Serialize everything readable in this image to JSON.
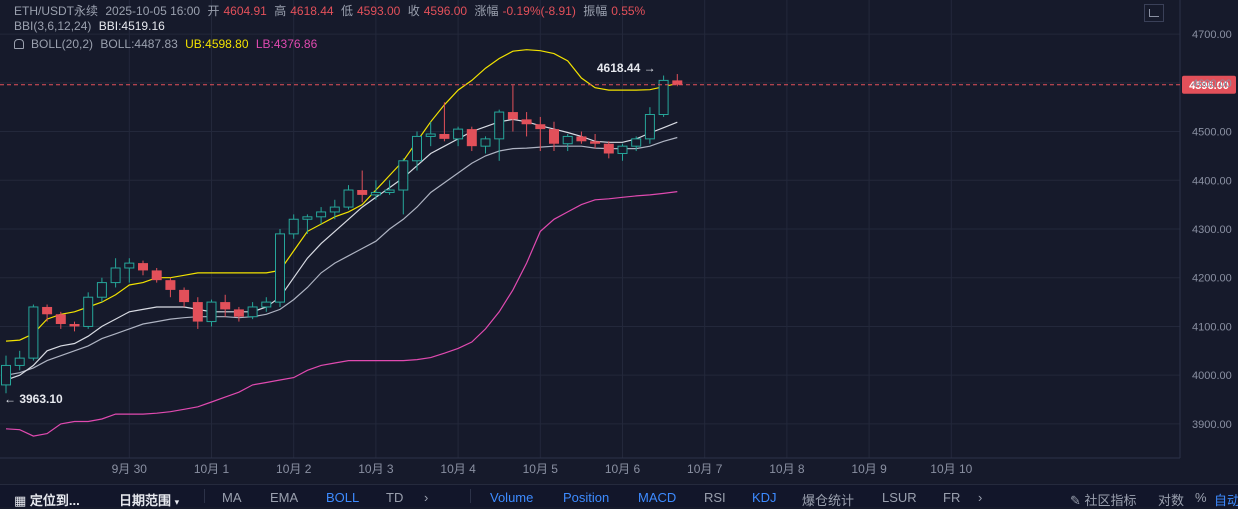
{
  "header": {
    "symbol": "ETH/USDT永续",
    "datetime": "2025-10-05 16:00",
    "open_label": "开",
    "open": "4604.91",
    "high_label": "高",
    "high": "4618.44",
    "low_label": "低",
    "low": "4593.00",
    "close_label": "收",
    "close": "4596.00",
    "change_label": "涨幅",
    "change": "-0.19%(-8.91)",
    "amp_label": "振幅",
    "amp": "0.55%",
    "bbi_title": "BBI(3,6,12,24)",
    "bbi_value": "BBI:4519.16",
    "boll_title": "BOLL(20,2)",
    "boll_value": "BOLL:4487.83",
    "ub_value": "UB:4598.80",
    "lb_value": "LB:4376.86"
  },
  "colors": {
    "up": "#26a69a",
    "down": "#e2505a",
    "ub": "#f2e200",
    "mid": "#aeb3c2",
    "lb": "#e04ab0",
    "bbi": "#d8dbe3",
    "price_tag": "#e2505a"
  },
  "chart_data": {
    "type": "candlestick",
    "symbol": "ETH/USDT",
    "x_ticks": [
      "9月 30",
      "10月 1",
      "10月 2",
      "10月 3",
      "10月 4",
      "10月 5",
      "10月 6",
      "10月 7",
      "10月 8",
      "10月 9",
      "10月 10"
    ],
    "y_ticks": [
      "4700.00",
      "4600.00",
      "4500.00",
      "4400.00",
      "4300.00",
      "4200.00",
      "4100.00",
      "4000.00",
      "3900.00"
    ],
    "ylim": [
      3830,
      4770
    ],
    "x_step_days": 0.16667,
    "first_candle": "2025-09-29 12:00",
    "grid": true,
    "candles": [
      {
        "o": 3980,
        "h": 4040,
        "l": 3963,
        "c": 4020
      },
      {
        "o": 4020,
        "h": 4050,
        "l": 4010,
        "c": 4035
      },
      {
        "o": 4035,
        "h": 4145,
        "l": 4030,
        "c": 4140
      },
      {
        "o": 4140,
        "h": 4145,
        "l": 4110,
        "c": 4125
      },
      {
        "o": 4125,
        "h": 4130,
        "l": 4095,
        "c": 4105
      },
      {
        "o": 4105,
        "h": 4110,
        "l": 4090,
        "c": 4100
      },
      {
        "o": 4100,
        "h": 4170,
        "l": 4095,
        "c": 4160
      },
      {
        "o": 4160,
        "h": 4200,
        "l": 4150,
        "c": 4190
      },
      {
        "o": 4190,
        "h": 4240,
        "l": 4180,
        "c": 4220
      },
      {
        "o": 4220,
        "h": 4240,
        "l": 4190,
        "c": 4230
      },
      {
        "o": 4230,
        "h": 4235,
        "l": 4205,
        "c": 4215
      },
      {
        "o": 4215,
        "h": 4220,
        "l": 4190,
        "c": 4195
      },
      {
        "o": 4195,
        "h": 4200,
        "l": 4160,
        "c": 4175
      },
      {
        "o": 4175,
        "h": 4180,
        "l": 4140,
        "c": 4150
      },
      {
        "o": 4150,
        "h": 4160,
        "l": 4095,
        "c": 4110
      },
      {
        "o": 4110,
        "h": 4155,
        "l": 4100,
        "c": 4150
      },
      {
        "o": 4150,
        "h": 4165,
        "l": 4120,
        "c": 4135
      },
      {
        "o": 4135,
        "h": 4140,
        "l": 4110,
        "c": 4120
      },
      {
        "o": 4120,
        "h": 4150,
        "l": 4115,
        "c": 4140
      },
      {
        "o": 4140,
        "h": 4160,
        "l": 4130,
        "c": 4150
      },
      {
        "o": 4150,
        "h": 4300,
        "l": 4140,
        "c": 4290
      },
      {
        "o": 4290,
        "h": 4330,
        "l": 4280,
        "c": 4320
      },
      {
        "o": 4320,
        "h": 4330,
        "l": 4290,
        "c": 4325
      },
      {
        "o": 4325,
        "h": 4345,
        "l": 4310,
        "c": 4335
      },
      {
        "o": 4335,
        "h": 4360,
        "l": 4320,
        "c": 4345
      },
      {
        "o": 4345,
        "h": 4390,
        "l": 4340,
        "c": 4380
      },
      {
        "o": 4380,
        "h": 4420,
        "l": 4355,
        "c": 4370
      },
      {
        "o": 4370,
        "h": 4400,
        "l": 4360,
        "c": 4375
      },
      {
        "o": 4375,
        "h": 4400,
        "l": 4370,
        "c": 4380
      },
      {
        "o": 4380,
        "h": 4445,
        "l": 4330,
        "c": 4440
      },
      {
        "o": 4440,
        "h": 4500,
        "l": 4420,
        "c": 4490
      },
      {
        "o": 4490,
        "h": 4520,
        "l": 4470,
        "c": 4495
      },
      {
        "o": 4495,
        "h": 4560,
        "l": 4480,
        "c": 4485
      },
      {
        "o": 4485,
        "h": 4510,
        "l": 4470,
        "c": 4505
      },
      {
        "o": 4505,
        "h": 4510,
        "l": 4460,
        "c": 4470
      },
      {
        "o": 4470,
        "h": 4490,
        "l": 4455,
        "c": 4485
      },
      {
        "o": 4485,
        "h": 4545,
        "l": 4440,
        "c": 4540
      },
      {
        "o": 4540,
        "h": 4595,
        "l": 4500,
        "c": 4525
      },
      {
        "o": 4525,
        "h": 4540,
        "l": 4490,
        "c": 4515
      },
      {
        "o": 4515,
        "h": 4530,
        "l": 4460,
        "c": 4505
      },
      {
        "o": 4505,
        "h": 4520,
        "l": 4460,
        "c": 4475
      },
      {
        "o": 4475,
        "h": 4495,
        "l": 4460,
        "c": 4490
      },
      {
        "o": 4490,
        "h": 4500,
        "l": 4475,
        "c": 4480
      },
      {
        "o": 4480,
        "h": 4495,
        "l": 4465,
        "c": 4475
      },
      {
        "o": 4475,
        "h": 4480,
        "l": 4445,
        "c": 4455
      },
      {
        "o": 4455,
        "h": 4475,
        "l": 4440,
        "c": 4470
      },
      {
        "o": 4470,
        "h": 4490,
        "l": 4460,
        "c": 4485
      },
      {
        "o": 4485,
        "h": 4550,
        "l": 4475,
        "c": 4535
      },
      {
        "o": 4535,
        "h": 4615,
        "l": 4530,
        "c": 4605
      },
      {
        "o": 4605,
        "h": 4618,
        "l": 4593,
        "c": 4596
      }
    ],
    "series": [
      {
        "name": "UB",
        "values": [
          4070,
          4072,
          4085,
          4115,
          4125,
          4130,
          4140,
          4150,
          4165,
          4185,
          4190,
          4200,
          4200,
          4205,
          4210,
          4210,
          4210,
          4210,
          4210,
          4210,
          4215,
          4255,
          4295,
          4310,
          4325,
          4335,
          4350,
          4380,
          4410,
          4440,
          4480,
          4520,
          4555,
          4585,
          4605,
          4630,
          4650,
          4665,
          4668,
          4666,
          4660,
          4645,
          4610,
          4590,
          4585,
          4585,
          4585,
          4586,
          4592,
          4598.8
        ]
      },
      {
        "name": "BOLL",
        "values": [
          4000,
          4005,
          4015,
          4030,
          4040,
          4050,
          4060,
          4075,
          4085,
          4095,
          4105,
          4110,
          4115,
          4118,
          4120,
          4120,
          4120,
          4118,
          4120,
          4125,
          4135,
          4155,
          4180,
          4210,
          4230,
          4245,
          4260,
          4275,
          4300,
          4320,
          4345,
          4375,
          4395,
          4415,
          4435,
          4450,
          4460,
          4465,
          4466,
          4468,
          4470,
          4470,
          4470,
          4466,
          4465,
          4465,
          4465,
          4470,
          4480,
          4487.83
        ]
      },
      {
        "name": "LB",
        "values": [
          3890,
          3888,
          3875,
          3880,
          3900,
          3905,
          3905,
          3910,
          3920,
          3920,
          3920,
          3922,
          3925,
          3930,
          3935,
          3945,
          3955,
          3965,
          3980,
          3985,
          3990,
          3995,
          4010,
          4020,
          4025,
          4030,
          4030,
          4030,
          4030,
          4030,
          4032,
          4036,
          4045,
          4055,
          4068,
          4095,
          4130,
          4175,
          4230,
          4295,
          4320,
          4335,
          4350,
          4360,
          4362,
          4365,
          4368,
          4370,
          4373,
          4376.86
        ]
      },
      {
        "name": "BBI",
        "values": [
          3990,
          4000,
          4020,
          4050,
          4060,
          4065,
          4080,
          4100,
          4115,
          4130,
          4135,
          4140,
          4140,
          4140,
          4135,
          4130,
          4130,
          4130,
          4130,
          4140,
          4160,
          4200,
          4240,
          4270,
          4295,
          4320,
          4345,
          4365,
          4385,
          4405,
          4430,
          4455,
          4470,
          4485,
          4500,
          4510,
          4520,
          4525,
          4520,
          4512,
          4505,
          4498,
          4490,
          4480,
          4478,
          4478,
          4485,
          4497,
          4508,
          4519.16
        ]
      }
    ],
    "annotations": [
      {
        "text": "4618.44 →",
        "candle": 48,
        "value": 4618.44
      },
      {
        "text": "← 3963.10",
        "candle": 0,
        "value": 3963.1
      }
    ],
    "last_price": 4596.0,
    "last_price_label": "4596.00"
  },
  "bottom": {
    "locate": "定位到...",
    "range": "日期范围",
    "ind": [
      "MA",
      "EMA",
      "BOLL",
      "TD"
    ],
    "sub": [
      "Volume",
      "Position",
      "MACD",
      "RSI",
      "KDJ",
      "爆仓统计",
      "LSUR",
      "FR"
    ],
    "community": "社区指标",
    "log": "对数",
    "pct": "%",
    "auto": "自动"
  },
  "icons": [
    "crosshair-icon",
    "bell-icon",
    "chevron-right-icon",
    "chevron-down-icon",
    "edit-icon"
  ]
}
